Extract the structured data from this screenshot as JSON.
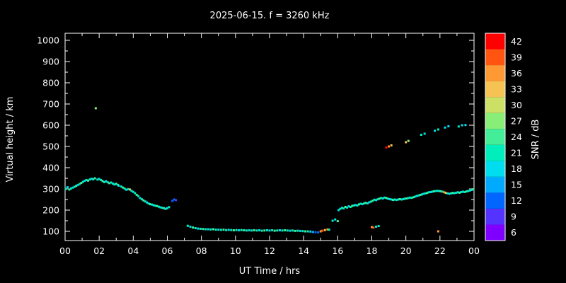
{
  "title": "2025-06-15. f = 3260 kHz",
  "x_axis": {
    "label": "UT Time / hrs",
    "tick_labels": [
      "00",
      "02",
      "04",
      "06",
      "08",
      "10",
      "12",
      "14",
      "16",
      "18",
      "20",
      "22",
      "00"
    ]
  },
  "y_axis": {
    "label": "Virtual height / km",
    "tick_labels": [
      "100",
      "200",
      "300",
      "400",
      "500",
      "600",
      "700",
      "800",
      "900",
      "1000"
    ]
  },
  "colorbar": {
    "label": "SNR / dB",
    "tick_values": [
      6,
      9,
      12,
      15,
      18,
      21,
      24,
      27,
      30,
      33,
      36,
      39,
      42
    ]
  },
  "chart_data": {
    "type": "scatter",
    "title": "2025-06-15. f = 3260 kHz",
    "xlabel": "UT Time / hrs",
    "ylabel": "Virtual height / km",
    "colorbar_label": "SNR / dB",
    "xlim_hours": [
      0,
      24
    ],
    "x_tick_step_hours": 2,
    "y_ticks_km": [
      100,
      200,
      300,
      400,
      500,
      600,
      700,
      800,
      900,
      1000
    ],
    "snr_ticks_db": [
      6,
      9,
      12,
      15,
      18,
      21,
      24,
      27,
      30,
      33,
      36,
      39,
      42
    ],
    "snr_bin_range_db": [
      4.5,
      43.5
    ],
    "background_color": "#000000",
    "axis_color": "#ffffff",
    "color_scale": {
      "6": "#7f00ff",
      "9": "#5533ff",
      "12": "#0066ff",
      "15": "#00aaff",
      "18": "#00ddee",
      "21": "#00eebb",
      "24": "#44ee99",
      "27": "#88ee77",
      "30": "#cce066",
      "33": "#f5c253",
      "36": "#ff9933",
      "39": "#ff5511",
      "42": "#ff0000"
    },
    "points": [
      [
        0.05,
        300,
        21
      ],
      [
        0.15,
        308,
        18
      ],
      [
        0.25,
        297,
        24
      ],
      [
        0.35,
        302,
        21
      ],
      [
        0.45,
        306,
        18
      ],
      [
        0.55,
        310,
        21
      ],
      [
        0.65,
        314,
        24
      ],
      [
        0.75,
        318,
        18
      ],
      [
        0.85,
        323,
        21
      ],
      [
        0.95,
        328,
        24
      ],
      [
        1.05,
        333,
        21
      ],
      [
        1.15,
        338,
        18
      ],
      [
        1.25,
        342,
        21
      ],
      [
        1.35,
        339,
        24
      ],
      [
        1.45,
        344,
        21
      ],
      [
        1.55,
        348,
        18
      ],
      [
        1.65,
        345,
        21
      ],
      [
        1.75,
        350,
        24
      ],
      [
        1.8,
        680,
        27
      ],
      [
        1.9,
        344,
        21
      ],
      [
        2.0,
        347,
        18
      ],
      [
        2.1,
        342,
        21
      ],
      [
        2.2,
        337,
        24
      ],
      [
        2.3,
        332,
        21
      ],
      [
        2.4,
        336,
        18
      ],
      [
        2.5,
        331,
        21
      ],
      [
        2.6,
        327,
        24
      ],
      [
        2.7,
        330,
        21
      ],
      [
        2.8,
        325,
        18
      ],
      [
        2.9,
        321,
        21
      ],
      [
        3.0,
        324,
        24
      ],
      [
        3.1,
        319,
        21
      ],
      [
        3.15,
        315,
        18
      ],
      [
        3.3,
        311,
        21
      ],
      [
        3.4,
        306,
        24
      ],
      [
        3.5,
        301,
        21
      ],
      [
        3.6,
        296,
        18
      ],
      [
        3.7,
        299,
        21
      ],
      [
        3.8,
        297,
        33
      ],
      [
        3.9,
        291,
        21
      ],
      [
        4.0,
        286,
        18
      ],
      [
        4.1,
        280,
        21
      ],
      [
        4.2,
        272,
        24
      ],
      [
        4.3,
        266,
        21
      ],
      [
        4.4,
        257,
        18
      ],
      [
        4.5,
        251,
        21
      ],
      [
        4.6,
        246,
        24
      ],
      [
        4.7,
        241,
        21
      ],
      [
        4.8,
        236,
        18
      ],
      [
        4.9,
        231,
        21
      ],
      [
        5.0,
        228,
        24
      ],
      [
        5.1,
        226,
        21
      ],
      [
        5.2,
        223,
        18
      ],
      [
        5.3,
        221,
        21
      ],
      [
        5.4,
        219,
        24
      ],
      [
        5.5,
        216,
        21
      ],
      [
        5.6,
        213,
        18
      ],
      [
        5.7,
        211,
        21
      ],
      [
        5.8,
        209,
        24
      ],
      [
        5.9,
        206,
        21
      ],
      [
        6.0,
        209,
        18
      ],
      [
        6.1,
        214,
        21
      ],
      [
        6.3,
        243,
        12
      ],
      [
        6.4,
        250,
        12
      ],
      [
        6.5,
        247,
        9
      ],
      [
        7.2,
        126,
        21
      ],
      [
        7.35,
        122,
        18
      ],
      [
        7.5,
        118,
        24
      ],
      [
        7.65,
        115,
        21
      ],
      [
        7.8,
        113,
        18
      ],
      [
        7.95,
        112,
        21
      ],
      [
        8.1,
        111,
        24
      ],
      [
        8.25,
        110,
        21
      ],
      [
        8.4,
        110,
        18
      ],
      [
        8.55,
        109,
        21
      ],
      [
        8.7,
        110,
        24
      ],
      [
        8.85,
        108,
        21
      ],
      [
        9.0,
        108,
        18
      ],
      [
        9.15,
        107,
        21
      ],
      [
        9.3,
        108,
        24
      ],
      [
        9.45,
        106,
        21
      ],
      [
        9.6,
        107,
        18
      ],
      [
        9.75,
        106,
        21
      ],
      [
        9.9,
        105,
        24
      ],
      [
        10.05,
        106,
        21
      ],
      [
        10.2,
        105,
        18
      ],
      [
        10.35,
        106,
        21
      ],
      [
        10.5,
        105,
        24
      ],
      [
        10.65,
        104,
        21
      ],
      [
        10.8,
        105,
        18
      ],
      [
        10.95,
        104,
        21
      ],
      [
        11.1,
        105,
        24
      ],
      [
        11.25,
        104,
        21
      ],
      [
        11.4,
        105,
        18
      ],
      [
        11.55,
        103,
        21
      ],
      [
        11.7,
        104,
        24
      ],
      [
        11.85,
        105,
        21
      ],
      [
        12.0,
        104,
        18
      ],
      [
        12.15,
        105,
        21
      ],
      [
        12.3,
        103,
        24
      ],
      [
        12.45,
        104,
        21
      ],
      [
        12.6,
        105,
        18
      ],
      [
        12.75,
        104,
        21
      ],
      [
        12.9,
        105,
        24
      ],
      [
        13.05,
        104,
        21
      ],
      [
        13.2,
        103,
        18
      ],
      [
        13.35,
        104,
        21
      ],
      [
        13.5,
        102,
        24
      ],
      [
        13.65,
        103,
        21
      ],
      [
        13.8,
        102,
        18
      ],
      [
        13.95,
        101,
        21
      ],
      [
        14.1,
        100,
        24
      ],
      [
        14.25,
        100,
        21
      ],
      [
        14.4,
        99,
        18
      ],
      [
        14.55,
        97,
        15
      ],
      [
        14.7,
        96,
        12
      ],
      [
        14.85,
        95,
        12
      ],
      [
        15.0,
        100,
        36
      ],
      [
        15.1,
        103,
        39
      ],
      [
        15.25,
        106,
        33
      ],
      [
        15.4,
        109,
        36
      ],
      [
        15.5,
        108,
        21
      ],
      [
        15.7,
        150,
        21
      ],
      [
        15.85,
        156,
        18
      ],
      [
        16.0,
        148,
        24
      ],
      [
        16.05,
        200,
        18
      ],
      [
        16.15,
        206,
        21
      ],
      [
        16.25,
        211,
        18
      ],
      [
        16.35,
        208,
        21
      ],
      [
        16.45,
        215,
        24
      ],
      [
        16.55,
        212,
        21
      ],
      [
        16.65,
        218,
        18
      ],
      [
        16.75,
        215,
        21
      ],
      [
        16.85,
        220,
        24
      ],
      [
        16.95,
        222,
        21
      ],
      [
        17.05,
        224,
        18
      ],
      [
        17.15,
        222,
        21
      ],
      [
        17.25,
        227,
        24
      ],
      [
        17.35,
        230,
        21
      ],
      [
        17.45,
        228,
        18
      ],
      [
        17.55,
        232,
        21
      ],
      [
        17.65,
        234,
        24
      ],
      [
        17.75,
        232,
        21
      ],
      [
        17.85,
        237,
        18
      ],
      [
        17.95,
        240,
        21
      ],
      [
        18.05,
        244,
        24
      ],
      [
        18.15,
        249,
        21
      ],
      [
        18.25,
        247,
        18
      ],
      [
        18.35,
        251,
        21
      ],
      [
        18.45,
        254,
        24
      ],
      [
        18.55,
        257,
        21
      ],
      [
        18.65,
        255,
        18
      ],
      [
        18.75,
        259,
        21
      ],
      [
        18.85,
        257,
        24
      ],
      [
        18.95,
        254,
        21
      ],
      [
        19.05,
        252,
        18
      ],
      [
        19.15,
        250,
        21
      ],
      [
        19.25,
        248,
        24
      ],
      [
        19.35,
        250,
        21
      ],
      [
        19.45,
        248,
        18
      ],
      [
        19.55,
        250,
        21
      ],
      [
        19.65,
        252,
        24
      ],
      [
        19.75,
        250,
        21
      ],
      [
        19.85,
        252,
        18
      ],
      [
        19.95,
        254,
        21
      ],
      [
        20.05,
        255,
        24
      ],
      [
        20.15,
        257,
        21
      ],
      [
        20.25,
        259,
        18
      ],
      [
        20.35,
        258,
        21
      ],
      [
        20.45,
        261,
        24
      ],
      [
        20.55,
        264,
        21
      ],
      [
        20.65,
        267,
        18
      ],
      [
        20.75,
        269,
        21
      ],
      [
        20.85,
        272,
        24
      ],
      [
        20.95,
        274,
        21
      ],
      [
        21.05,
        277,
        18
      ],
      [
        21.15,
        279,
        21
      ],
      [
        21.25,
        281,
        24
      ],
      [
        21.35,
        284,
        21
      ],
      [
        21.45,
        285,
        18
      ],
      [
        21.55,
        287,
        21
      ],
      [
        21.65,
        289,
        24
      ],
      [
        21.75,
        290,
        21
      ],
      [
        21.85,
        291,
        18
      ],
      [
        21.95,
        290,
        21
      ],
      [
        22.05,
        289,
        24
      ],
      [
        22.15,
        287,
        21
      ],
      [
        22.25,
        284,
        36
      ],
      [
        22.35,
        281,
        33
      ],
      [
        22.45,
        279,
        21
      ],
      [
        22.55,
        277,
        18
      ],
      [
        22.65,
        279,
        21
      ],
      [
        22.75,
        281,
        24
      ],
      [
        22.85,
        280,
        21
      ],
      [
        22.95,
        282,
        18
      ],
      [
        23.05,
        284,
        21
      ],
      [
        23.15,
        282,
        24
      ],
      [
        23.25,
        285,
        21
      ],
      [
        23.35,
        287,
        18
      ],
      [
        23.45,
        285,
        21
      ],
      [
        23.55,
        288,
        24
      ],
      [
        23.65,
        290,
        21
      ],
      [
        23.75,
        292,
        18
      ],
      [
        23.85,
        295,
        21
      ],
      [
        23.95,
        298,
        24
      ],
      [
        18.85,
        495,
        42
      ],
      [
        19.0,
        500,
        36
      ],
      [
        19.15,
        505,
        33
      ],
      [
        20.0,
        520,
        33
      ],
      [
        20.15,
        526,
        27
      ],
      [
        20.9,
        555,
        21
      ],
      [
        21.1,
        560,
        18
      ],
      [
        21.7,
        574,
        18
      ],
      [
        21.9,
        580,
        21
      ],
      [
        22.3,
        589,
        18
      ],
      [
        22.5,
        595,
        18
      ],
      [
        23.1,
        594,
        21
      ],
      [
        23.3,
        600,
        18
      ],
      [
        23.5,
        601,
        18
      ],
      [
        18.0,
        120,
        36
      ],
      [
        18.1,
        118,
        39
      ],
      [
        18.25,
        122,
        18
      ],
      [
        18.4,
        125,
        21
      ],
      [
        21.9,
        100,
        36
      ]
    ]
  }
}
